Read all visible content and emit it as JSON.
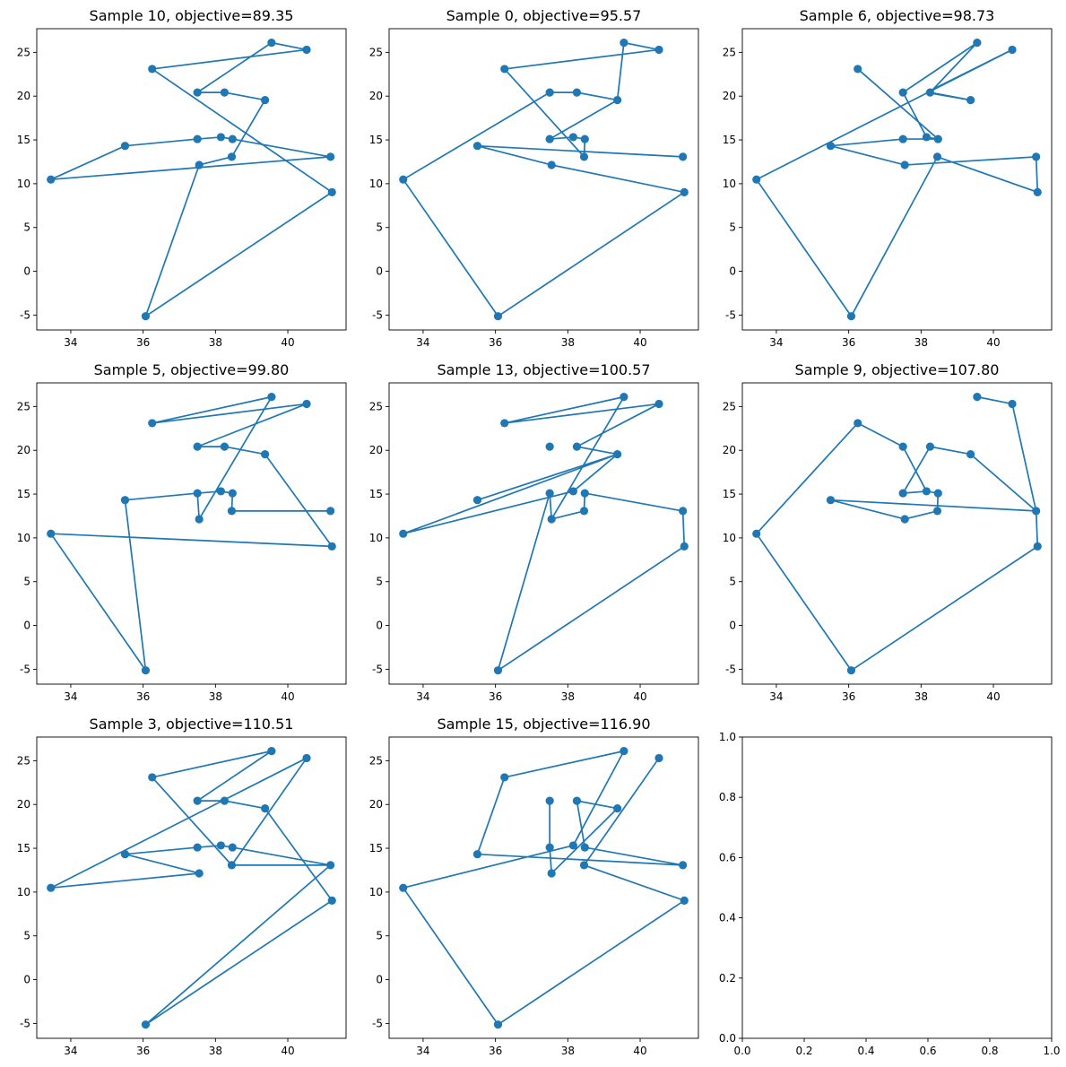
{
  "chart_data": {
    "type": "line",
    "cities": [
      [
        36.07,
        -5.13
      ],
      [
        33.45,
        10.48
      ],
      [
        41.22,
        9.03
      ],
      [
        41.18,
        13.07
      ],
      [
        38.45,
        13.07
      ],
      [
        37.55,
        12.14
      ],
      [
        35.5,
        14.32
      ],
      [
        37.5,
        15.1
      ],
      [
        38.15,
        15.32
      ],
      [
        38.47,
        15.1
      ],
      [
        39.37,
        19.55
      ],
      [
        37.5,
        20.42
      ],
      [
        38.25,
        20.42
      ],
      [
        36.25,
        23.1
      ],
      [
        39.55,
        26.1
      ],
      [
        40.52,
        25.3
      ]
    ],
    "subplots": [
      {
        "title": "Sample 10, objective=89.35",
        "x": [
          36.07,
          37.55,
          38.45,
          39.37,
          38.25,
          37.5,
          39.55,
          40.52,
          36.25,
          41.22,
          36.07
        ],
        "y": [
          -5.13,
          12.14,
          13.07,
          19.55,
          20.42,
          20.42,
          26.1,
          25.3,
          23.1,
          9.03,
          -5.13
        ],
        "x_extra": [
          33.45,
          41.18,
          38.47,
          38.15,
          37.5,
          35.5,
          33.45
        ],
        "y_extra": [
          10.48,
          13.07,
          15.1,
          15.32,
          15.1,
          14.32,
          10.48
        ],
        "xticks": [
          34,
          36,
          38,
          40
        ],
        "yticks": [
          -5,
          0,
          5,
          10,
          15,
          20,
          25
        ]
      },
      {
        "title": "Sample 0, objective=95.57",
        "x": [
          36.07,
          33.45,
          37.5,
          38.25,
          39.37,
          37.5,
          38.15,
          38.47,
          38.45,
          36.25,
          40.52,
          39.55,
          39.37
        ],
        "y": [
          -5.13,
          10.48,
          20.42,
          20.42,
          19.55,
          15.1,
          15.32,
          15.1,
          13.07,
          23.1,
          25.3,
          26.1,
          19.55
        ],
        "x_extra": [
          41.18,
          35.5,
          37.55,
          41.22,
          36.07
        ],
        "y_extra": [
          13.07,
          14.32,
          12.14,
          9.03,
          -5.13
        ],
        "xticks": [
          34,
          36,
          38,
          40
        ],
        "yticks": [
          -5,
          0,
          5,
          10,
          15,
          20,
          25
        ]
      },
      {
        "title": "Sample 6, objective=98.73",
        "x": [
          36.07,
          33.45,
          40.52,
          38.15,
          39.37,
          38.25,
          39.55,
          37.5,
          38.15,
          38.47,
          36.25
        ],
        "y": [
          -5.13,
          10.48,
          25.3,
          20.42,
          19.55,
          20.42,
          26.1,
          20.42,
          15.32,
          15.1,
          23.1
        ],
        "x_extra": [
          38.47,
          37.5,
          35.5,
          37.55,
          41.18,
          41.22,
          38.45,
          36.07
        ],
        "y_extra": [
          15.1,
          15.1,
          14.32,
          12.14,
          13.07,
          9.03,
          13.07,
          -5.13
        ],
        "xticks": [
          34,
          36,
          38,
          40
        ],
        "yticks": [
          -5,
          0,
          5,
          10,
          15,
          20,
          25
        ]
      },
      {
        "title": "Sample 5, objective=99.80",
        "x": [
          36.07,
          35.5,
          37.5,
          37.55,
          39.55,
          36.25,
          40.52,
          37.5,
          38.25,
          39.37,
          41.22,
          33.45,
          36.07
        ],
        "y": [
          -5.13,
          14.32,
          15.1,
          12.14,
          26.1,
          23.1,
          25.3,
          20.42,
          20.42,
          19.55,
          9.03,
          10.48,
          -5.13
        ],
        "x_extra": [
          37.5,
          38.15,
          38.47,
          38.45,
          41.18
        ],
        "y_extra": [
          15.1,
          15.32,
          15.1,
          13.07,
          13.07
        ],
        "xticks": [
          34,
          36,
          38,
          40
        ],
        "yticks": [
          -5,
          0,
          5,
          10,
          15,
          20,
          25
        ]
      },
      {
        "title": "Sample 13, objective=100.57",
        "x": [
          36.07,
          37.5,
          37.55,
          38.45,
          38.47,
          41.18,
          41.22,
          36.07
        ],
        "y": [
          -5.13,
          15.1,
          12.14,
          13.07,
          15.1,
          13.07,
          9.03,
          -5.13
        ],
        "x_extra": [
          37.55,
          39.55,
          36.25,
          40.52,
          38.25,
          39.37,
          33.45,
          38.15,
          39.37,
          35.5
        ],
        "y_extra": [
          12.14,
          26.1,
          23.1,
          25.3,
          20.42,
          19.55,
          10.48,
          15.32,
          19.55,
          14.32
        ],
        "xticks": [
          34,
          36,
          38,
          40
        ],
        "yticks": [
          -5,
          0,
          5,
          10,
          15,
          20,
          25
        ]
      },
      {
        "title": "Sample 9, objective=107.80",
        "x": [
          36.07,
          33.45,
          36.25,
          37.5,
          38.15,
          38.47,
          38.45,
          37.55,
          35.5,
          41.18,
          41.22,
          36.07
        ],
        "y": [
          -5.13,
          10.48,
          23.1,
          20.42,
          15.32,
          15.1,
          13.07,
          12.14,
          14.32,
          13.07,
          9.03,
          -5.13
        ],
        "x_extra": [
          38.15,
          37.5,
          38.25,
          39.37,
          41.18,
          40.52,
          39.55
        ],
        "y_extra": [
          15.32,
          15.1,
          20.42,
          19.55,
          13.07,
          25.3,
          26.1
        ],
        "xticks": [
          34,
          36,
          38,
          40
        ],
        "yticks": [
          -5,
          0,
          5,
          10,
          15,
          20,
          25
        ]
      },
      {
        "title": "Sample 3, objective=110.51",
        "x": [
          36.07,
          41.18,
          38.45,
          36.25,
          39.55,
          37.5,
          38.25,
          39.37,
          41.22,
          36.07
        ],
        "y": [
          -5.13,
          13.07,
          13.07,
          23.1,
          26.1,
          20.42,
          20.42,
          19.55,
          9.03,
          -5.13
        ],
        "x_extra": [
          38.45,
          40.52,
          33.45,
          37.55,
          35.5,
          37.5,
          38.15,
          38.47,
          41.18
        ],
        "y_extra": [
          13.07,
          25.3,
          10.48,
          12.14,
          14.32,
          15.1,
          15.32,
          15.1,
          13.07
        ],
        "xticks": [
          34,
          36,
          38,
          40
        ],
        "yticks": [
          -5,
          0,
          5,
          10,
          15,
          20,
          25
        ]
      },
      {
        "title": "Sample 15, objective=116.90",
        "x": [
          36.07,
          33.45,
          38.15,
          39.55,
          36.25,
          35.5,
          41.18,
          38.47,
          38.25,
          39.37,
          37.55,
          37.5,
          37.5
        ],
        "y": [
          -5.13,
          10.48,
          15.32,
          26.1,
          23.1,
          14.32,
          13.07,
          15.1,
          20.42,
          19.55,
          12.14,
          15.1,
          20.42
        ],
        "x_extra": [
          38.45,
          40.52,
          38.45,
          41.22,
          36.07
        ],
        "y_extra": [
          13.07,
          25.3,
          13.07,
          9.03,
          -5.13
        ],
        "xticks": [
          34,
          36,
          38,
          40
        ],
        "yticks": [
          -5,
          0,
          5,
          10,
          15,
          20,
          25
        ]
      },
      {
        "title": "",
        "empty": true,
        "xticks": [
          "0.0",
          "0.2",
          "0.4",
          "0.6",
          "0.8",
          "1.0"
        ],
        "yticks": [
          "0.0",
          "0.2",
          "0.4",
          "0.6",
          "0.8",
          "1.0"
        ]
      }
    ],
    "xlim": [
      33.06,
      41.61
    ],
    "ylim": [
      -6.7,
      27.7
    ],
    "line_color": "#1f77b4",
    "marker": "o"
  }
}
